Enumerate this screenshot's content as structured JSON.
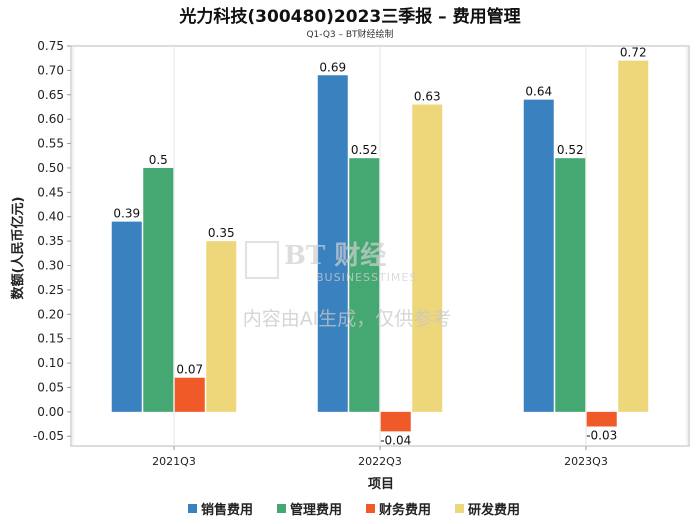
{
  "chart_data": {
    "type": "bar",
    "title": "光力科技(300480)2023三季报 – 费用管理",
    "subtitle": "Q1-Q3 – BT财经绘制",
    "xlabel": "项目",
    "ylabel": "数额(人民币亿元)",
    "categories": [
      "2021Q3",
      "2022Q3",
      "2023Q3"
    ],
    "ylim": [
      -0.07,
      0.75
    ],
    "yticks": [
      0.75,
      0.7,
      0.65,
      0.6,
      0.55,
      0.5,
      0.45,
      0.4,
      0.35,
      0.3,
      0.25,
      0.2,
      0.15,
      0.1,
      0.05,
      0.0,
      -0.05
    ],
    "ytick_labels": [
      "0.75",
      "0.70",
      "0.65",
      "0.60",
      "0.55",
      "0.50",
      "0.45",
      "0.40",
      "0.35",
      "0.30",
      "0.25",
      "0.20",
      "0.15",
      "0.10",
      "0.05",
      "0.00",
      "-0.05"
    ],
    "series": [
      {
        "name": "销售费用",
        "color": "#3a81bf",
        "values": [
          0.39,
          0.69,
          0.64
        ],
        "labels": [
          "0.39",
          "0.69",
          "0.64"
        ]
      },
      {
        "name": "管理费用",
        "color": "#45a872",
        "values": [
          0.5,
          0.52,
          0.52
        ],
        "labels": [
          "0.5",
          "0.52",
          "0.52"
        ]
      },
      {
        "name": "财务费用",
        "color": "#f05a28",
        "values": [
          0.07,
          -0.04,
          -0.03
        ],
        "labels": [
          "0.07",
          "-0.04",
          "-0.03"
        ]
      },
      {
        "name": "研发费用",
        "color": "#edd77a",
        "values": [
          0.35,
          0.63,
          0.72
        ],
        "labels": [
          "0.35",
          "0.63",
          "0.72"
        ]
      }
    ],
    "legend_position": "bottom",
    "grid": "vertical"
  },
  "watermark": {
    "logo": "BT 财经",
    "logo_sub": "BUSINESSTIMES",
    "text": "内容由AI生成，仅供参考"
  }
}
